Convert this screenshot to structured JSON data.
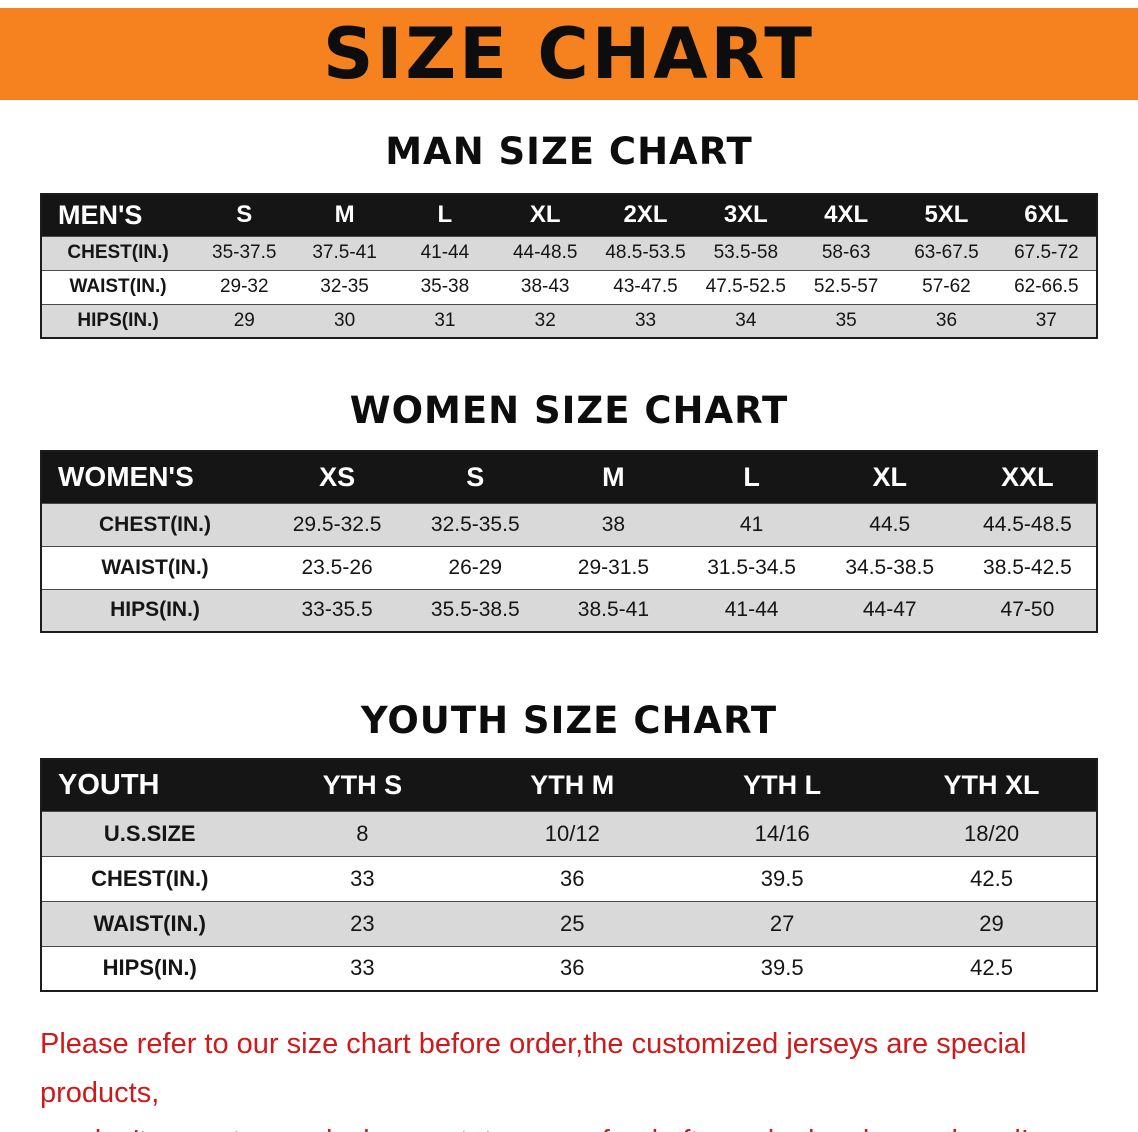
{
  "banner": {
    "title": "SIZE CHART",
    "bg_color": "#f6821f",
    "text_color": "#0d0d0d"
  },
  "colors": {
    "table_header_bg": "#151515",
    "table_row_alt_bg": "#d9d9d9",
    "disclaimer_text": "#ce1a1a"
  },
  "sections": [
    {
      "title": "MAN SIZE CHART",
      "table": {
        "header": [
          "MEN'S",
          "S",
          "M",
          "L",
          "XL",
          "2XL",
          "3XL",
          "4XL",
          "5XL",
          "6XL"
        ],
        "rows": [
          [
            "CHEST(IN.)",
            "35-37.5",
            "37.5-41",
            "41-44",
            "44-48.5",
            "48.5-53.5",
            "53.5-58",
            "58-63",
            "63-67.5",
            "67.5-72"
          ],
          [
            "WAIST(IN.)",
            "29-32",
            "32-35",
            "35-38",
            "38-43",
            "43-47.5",
            "47.5-52.5",
            "52.5-57",
            "57-62",
            "62-66.5"
          ],
          [
            "HIPS(IN.)",
            "29",
            "30",
            "31",
            "32",
            "33",
            "34",
            "35",
            "36",
            "37"
          ]
        ]
      }
    },
    {
      "title": "WOMEN SIZE CHART",
      "table": {
        "header": [
          "WOMEN'S",
          "XS",
          "S",
          "M",
          "L",
          "XL",
          "XXL"
        ],
        "rows": [
          [
            "CHEST(IN.)",
            "29.5-32.5",
            "32.5-35.5",
            "38",
            "41",
            "44.5",
            "44.5-48.5"
          ],
          [
            "WAIST(IN.)",
            "23.5-26",
            "26-29",
            "29-31.5",
            "31.5-34.5",
            "34.5-38.5",
            "38.5-42.5"
          ],
          [
            "HIPS(IN.)",
            "33-35.5",
            "35.5-38.5",
            "38.5-41",
            "41-44",
            "44-47",
            "47-50"
          ]
        ]
      }
    },
    {
      "title": "YOUTH SIZE CHART",
      "table": {
        "header": [
          "YOUTH",
          "YTH S",
          "YTH M",
          "YTH L",
          "YTH XL"
        ],
        "rows": [
          [
            "U.S.SIZE",
            "8",
            "10/12",
            "14/16",
            "18/20"
          ],
          [
            "CHEST(IN.)",
            "33",
            "36",
            "39.5",
            "42.5"
          ],
          [
            "WAIST(IN.)",
            "23",
            "25",
            "27",
            "29"
          ],
          [
            "HIPS(IN.)",
            "33",
            "36",
            "39.5",
            "42.5"
          ]
        ]
      }
    }
  ],
  "disclaimer": {
    "line1": "Please refer to our size chart before order,the customized jerseys are special products,",
    "line2": "we don't accept cancel, change, teturn or refund after order has been placed!"
  }
}
